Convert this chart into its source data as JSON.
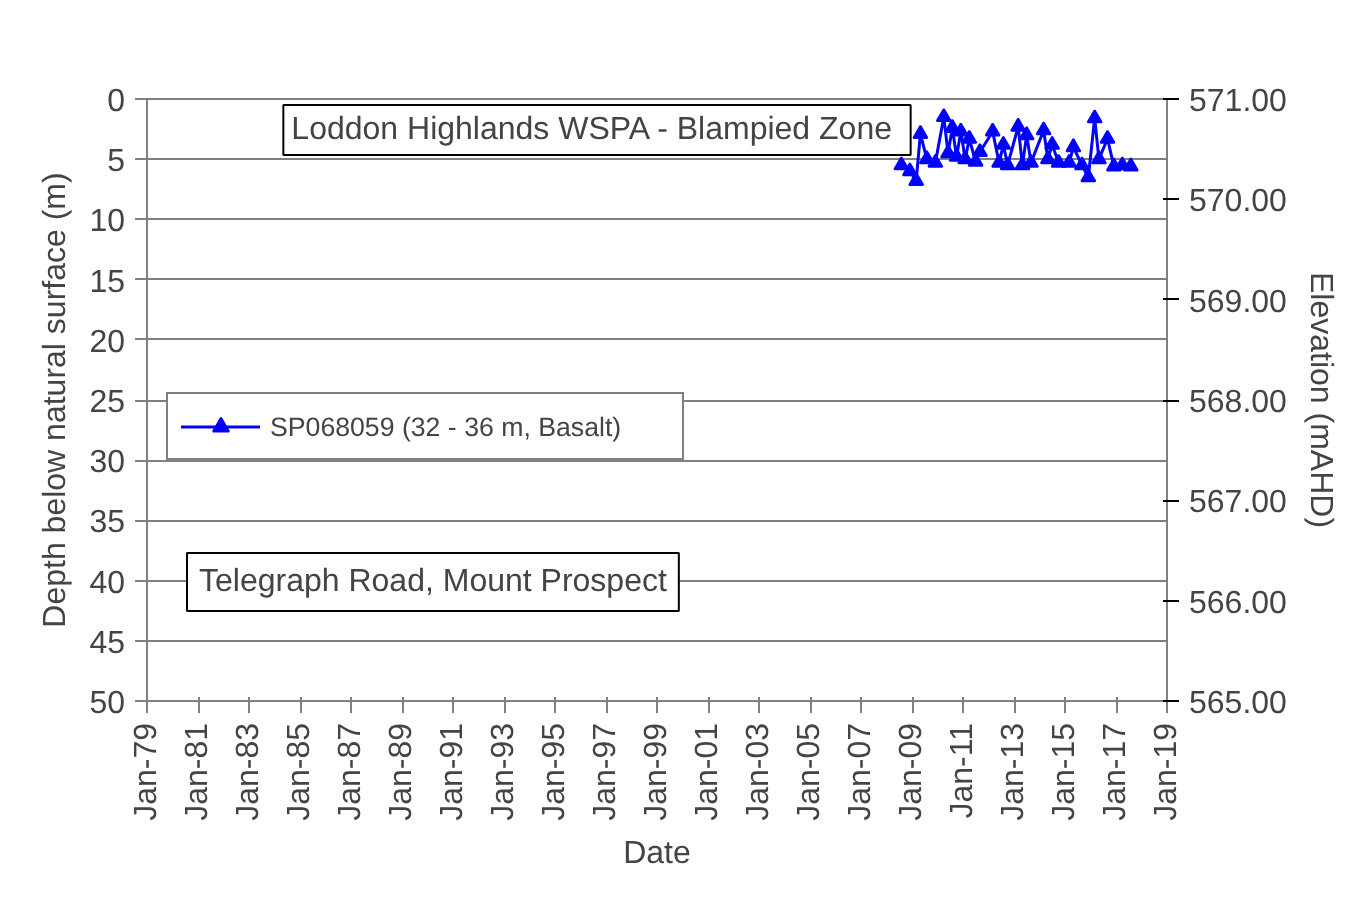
{
  "chart_data": {
    "type": "line",
    "title": "Loddon Highlands WSPA -  Blampied Zone",
    "xlabel": "Date",
    "ylabel": "Depth below natural surface (m)",
    "y2label": "Elevation (mAHD)",
    "annotations": [
      "Telegraph Road, Mount Prospect"
    ],
    "x": [
      "2008-08",
      "2008-12",
      "2009-03",
      "2009-05",
      "2009-08",
      "2009-12",
      "2010-04",
      "2010-06",
      "2010-08",
      "2010-10",
      "2010-12",
      "2011-02",
      "2011-04",
      "2011-07",
      "2011-09",
      "2012-03",
      "2012-06",
      "2012-08",
      "2012-10",
      "2013-03",
      "2013-05",
      "2013-07",
      "2013-09",
      "2014-03",
      "2014-05",
      "2014-07",
      "2014-10",
      "2015-03",
      "2015-05",
      "2015-09",
      "2015-12",
      "2016-03",
      "2016-05",
      "2016-09",
      "2016-12",
      "2017-04",
      "2017-08"
    ],
    "series": [
      {
        "name": "SP068059 (32 - 36 m, Basalt)",
        "color": "#0000ff",
        "values": [
          5.5,
          6.0,
          6.8,
          2.9,
          5.0,
          5.3,
          1.5,
          4.5,
          2.4,
          4.8,
          2.7,
          5.0,
          3.3,
          5.2,
          4.4,
          2.7,
          5.3,
          3.8,
          5.5,
          2.3,
          5.5,
          3.0,
          5.3,
          2.6,
          5.0,
          3.8,
          5.3,
          5.3,
          4.0,
          5.5,
          6.5,
          1.6,
          5.0,
          3.3,
          5.6,
          5.5,
          5.6
        ]
      }
    ],
    "xlim": [
      "1979-01",
      "2019-01"
    ],
    "xticks": [
      {
        "value": "1979-01",
        "label": "Jan-79"
      },
      {
        "value": "1981-01",
        "label": "Jan-81"
      },
      {
        "value": "1983-01",
        "label": "Jan-83"
      },
      {
        "value": "1985-01",
        "label": "Jan-85"
      },
      {
        "value": "1987-01",
        "label": "Jan-87"
      },
      {
        "value": "1989-01",
        "label": "Jan-89"
      },
      {
        "value": "1991-01",
        "label": "Jan-91"
      },
      {
        "value": "1993-01",
        "label": "Jan-93"
      },
      {
        "value": "1995-01",
        "label": "Jan-95"
      },
      {
        "value": "1997-01",
        "label": "Jan-97"
      },
      {
        "value": "1999-01",
        "label": "Jan-99"
      },
      {
        "value": "2001-01",
        "label": "Jan-01"
      },
      {
        "value": "2003-01",
        "label": "Jan-03"
      },
      {
        "value": "2005-01",
        "label": "Jan-05"
      },
      {
        "value": "2007-01",
        "label": "Jan-07"
      },
      {
        "value": "2009-01",
        "label": "Jan-09"
      },
      {
        "value": "2011-01",
        "label": "Jan-11"
      },
      {
        "value": "2013-01",
        "label": "Jan-13"
      },
      {
        "value": "2015-01",
        "label": "Jan-15"
      },
      {
        "value": "2017-01",
        "label": "Jan-17"
      },
      {
        "value": "2019-01",
        "label": "Jan-19"
      }
    ],
    "ylim": [
      50,
      0
    ],
    "yticks": [
      0,
      5,
      10,
      15,
      20,
      25,
      30,
      35,
      40,
      45,
      50
    ],
    "y2lim": [
      565,
      571
    ],
    "y2ticks": [
      {
        "value": 565,
        "label": "565.00"
      },
      {
        "value": 566,
        "label": "566.00"
      },
      {
        "value": 567,
        "label": "567.00"
      },
      {
        "value": 568,
        "label": "568.00"
      },
      {
        "value": 569,
        "label": "569.00"
      },
      {
        "value": 570,
        "label": "570.00"
      },
      {
        "value": 571,
        "label": "571.00"
      }
    ],
    "grid": "y",
    "legend": "left",
    "marker": "triangle",
    "line_style": "solid"
  }
}
